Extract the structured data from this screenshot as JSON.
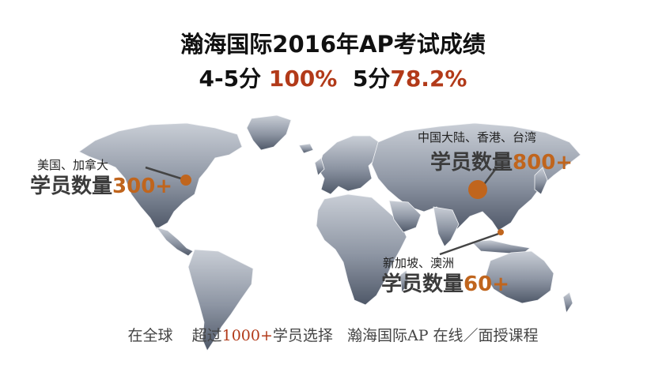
{
  "header": {
    "title": "瀚海国际2016年AP考试成绩",
    "score_45_label": "4-5分 ",
    "score_45_value": "100%",
    "score_5_label": "5分",
    "score_5_value": "78.2%"
  },
  "regions": [
    {
      "name": "美国、加拿大",
      "count_label": "学员数量",
      "count_value": "300+"
    },
    {
      "name": "中国大陆、香港、台湾",
      "count_label": "学员数量",
      "count_value": "800+"
    },
    {
      "name": "新加坡、澳洲",
      "count_label": "学员数量",
      "count_value": "60+"
    }
  ],
  "footer": {
    "part1": "在全球    超过",
    "number": "1000+",
    "part2": "学员选择   瀚海国际AP 在线／面授课程"
  },
  "colors": {
    "accent_red": "#b23a19",
    "marker_orange": "#c0651d",
    "map_gray": "#5d6675"
  }
}
